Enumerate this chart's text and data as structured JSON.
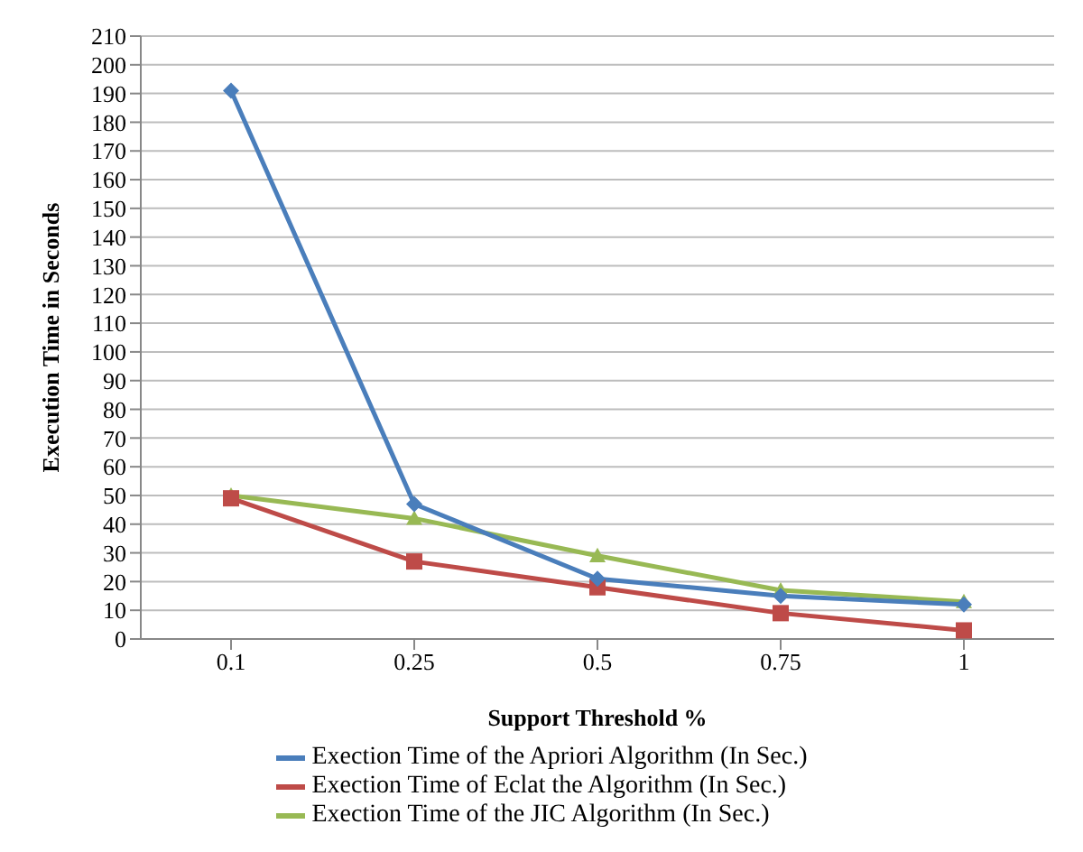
{
  "chart_data": {
    "type": "line",
    "xlabel": "Support Threshold %",
    "ylabel": "Execution Time in Seconds",
    "categories": [
      "0.1",
      "0.25",
      "0.5",
      "0.75",
      "1"
    ],
    "series": [
      {
        "name": "Exection Time  of the Apriori Algorithm  (In Sec.)",
        "color": "#4a7ebb",
        "marker": "diamond",
        "values": [
          191,
          47,
          21,
          15,
          12
        ]
      },
      {
        "name": "Exection Time  of Eclat the Algorithm (In Sec.)",
        "color": "#be4b48",
        "marker": "square",
        "values": [
          49,
          27,
          18,
          9,
          3
        ]
      },
      {
        "name": "Exection Time  of the JIC Algorithm  (In Sec.)",
        "color": "#98b954",
        "marker": "triangle",
        "values": [
          50,
          42,
          29,
          17,
          13
        ]
      }
    ],
    "ylim": [
      0,
      210
    ],
    "yticks": [
      0,
      10,
      20,
      30,
      40,
      50,
      60,
      70,
      80,
      90,
      100,
      110,
      120,
      130,
      140,
      150,
      160,
      170,
      180,
      190,
      200,
      210
    ],
    "grid": "y",
    "legend": "bottom",
    "line_style": "solid"
  }
}
